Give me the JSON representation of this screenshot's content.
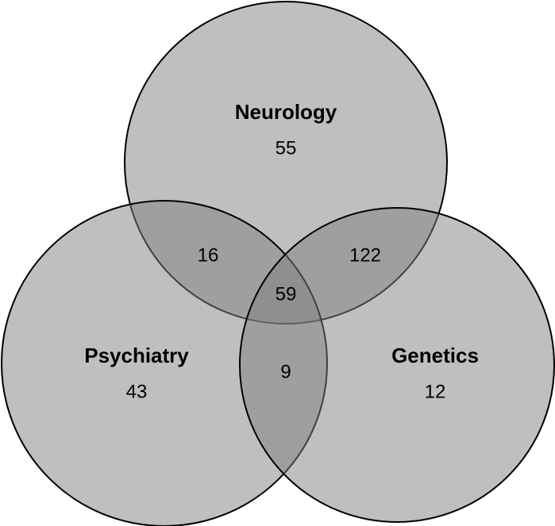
{
  "chart_data": {
    "type": "venn",
    "sets": [
      {
        "name": "Neurology",
        "value": 55
      },
      {
        "name": "Psychiatry",
        "value": 43
      },
      {
        "name": "Genetics",
        "value": 12
      }
    ],
    "intersections": [
      {
        "sets": [
          "Neurology",
          "Psychiatry"
        ],
        "value": 16
      },
      {
        "sets": [
          "Neurology",
          "Genetics"
        ],
        "value": 122
      },
      {
        "sets": [
          "Psychiatry",
          "Genetics"
        ],
        "value": 9
      },
      {
        "sets": [
          "Neurology",
          "Psychiatry",
          "Genetics"
        ],
        "value": 59
      }
    ]
  }
}
